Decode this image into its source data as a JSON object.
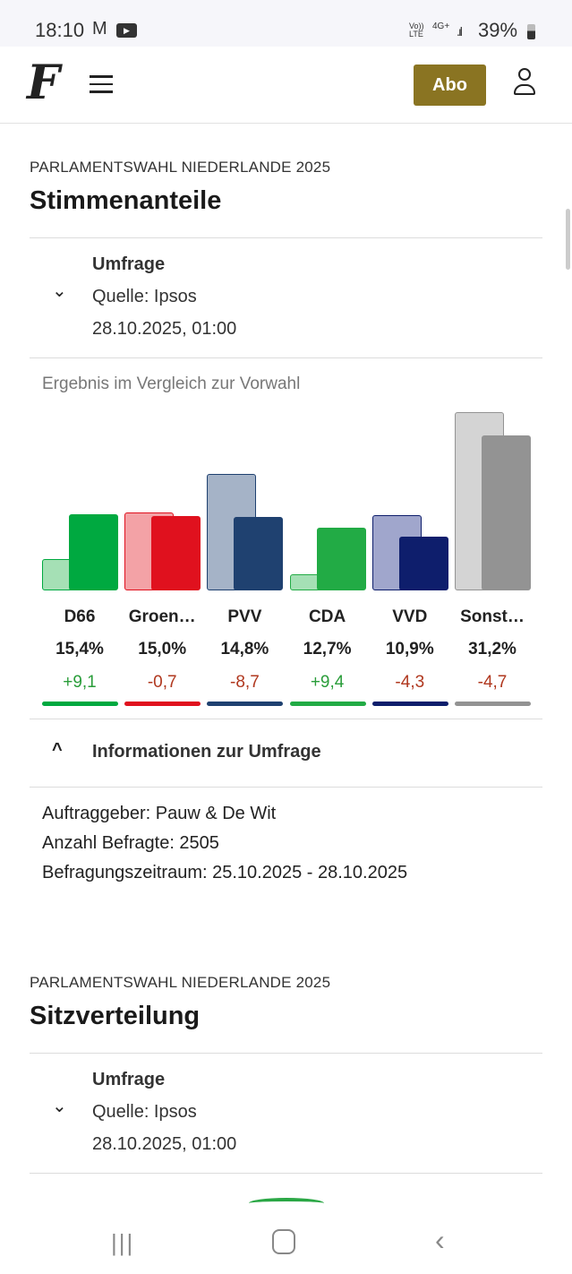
{
  "status_bar": {
    "time": "18:10",
    "battery": "39%",
    "network": "4G+",
    "volte": "Vo)) LTE"
  },
  "header": {
    "logo": "F",
    "abo_label": "Abo"
  },
  "section1": {
    "kicker": "PARLAMENTSWAHL NIEDERLANDE 2025",
    "title": "Stimmenanteile",
    "poll_label": "Umfrage",
    "source": "Quelle: Ipsos",
    "date": "28.10.2025, 01:00",
    "subtitle": "Ergebnis im Vergleich zur Vorwahl"
  },
  "chart_data": {
    "type": "bar",
    "categories": [
      "D66",
      "Groen…",
      "PVV",
      "CDA",
      "VVD",
      "Sonst…"
    ],
    "series": [
      {
        "values": [
          6.3,
          15.7,
          23.5,
          3.3,
          15.2,
          35.9
        ]
      },
      {
        "values": [
          15.4,
          15.0,
          14.8,
          12.7,
          10.9,
          31.2
        ]
      }
    ],
    "value_labels": [
      "15,4%",
      "15,0%",
      "14,8%",
      "12,7%",
      "10,9%",
      "31,2%"
    ],
    "delta_labels": [
      "+9,1",
      "-0,7",
      "-8,7",
      "+9,4",
      "-4,3",
      "-4,7"
    ],
    "colors": [
      "#00a940",
      "#e0111e",
      "#1f4170",
      "#22ab45",
      "#0e1e6c",
      "#939393"
    ],
    "prev_colors": [
      "#a5e0b5",
      "#f3a2a6",
      "#a5b3c7",
      "#a5e0b5",
      "#a0a6cc",
      "#d4d4d4"
    ],
    "delta_colors": [
      "#2a9d3a",
      "#b0381f",
      "#b0381f",
      "#2a9d3a",
      "#b0381f",
      "#b0381f"
    ],
    "ylim": [
      0,
      36
    ]
  },
  "info": {
    "title": "Informationen zur Umfrage",
    "client": "Auftraggeber: Pauw & De Wit",
    "respondents": "Anzahl Befragte: 2505",
    "period": "Befragungszeitraum: 25.10.2025 - 28.10.2025"
  },
  "section2": {
    "kicker": "PARLAMENTSWAHL NIEDERLANDE 2025",
    "title": "Sitzverteilung",
    "poll_label": "Umfrage",
    "source": "Quelle: Ipsos",
    "date": "28.10.2025, 01:00"
  }
}
